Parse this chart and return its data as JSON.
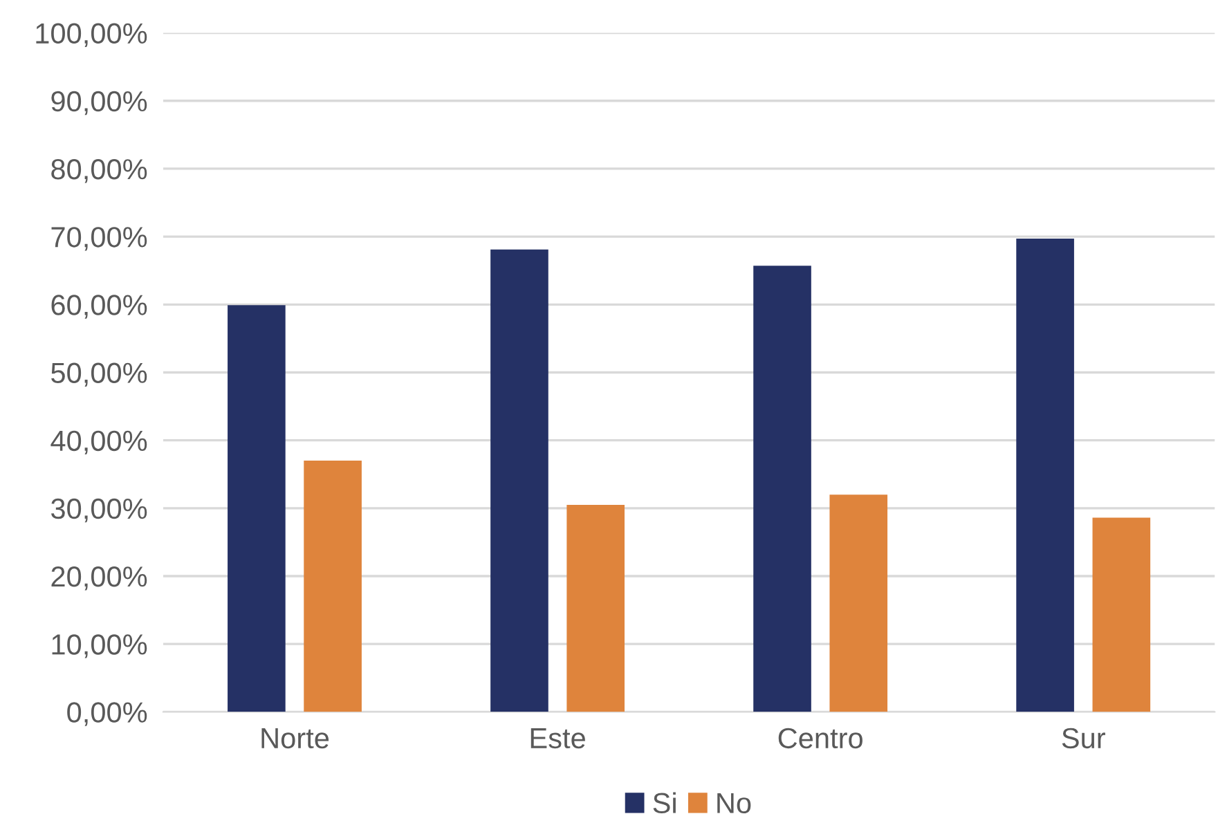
{
  "chart_data": {
    "type": "bar",
    "categories": [
      "Norte",
      "Este",
      "Centro",
      "Sur"
    ],
    "series": [
      {
        "name": "Si",
        "color": "#253165",
        "values": [
          59.9,
          68.1,
          65.7,
          69.7
        ]
      },
      {
        "name": "No",
        "color": "#df843c",
        "values": [
          37.0,
          30.5,
          32.0,
          28.6
        ]
      }
    ],
    "ylim": [
      0,
      100
    ],
    "yticks": [
      {
        "value": 0,
        "label": "0,00%"
      },
      {
        "value": 10,
        "label": "10,00%"
      },
      {
        "value": 20,
        "label": "20,00%"
      },
      {
        "value": 30,
        "label": "30,00%"
      },
      {
        "value": 40,
        "label": "40,00%"
      },
      {
        "value": 50,
        "label": "50,00%"
      },
      {
        "value": 60,
        "label": "60,00%"
      },
      {
        "value": 70,
        "label": "70,00%"
      },
      {
        "value": 80,
        "label": "80,00%"
      },
      {
        "value": 90,
        "label": "90,00%"
      },
      {
        "value": 100,
        "label": "100,00%"
      }
    ],
    "grid": "y",
    "legend": "bottom"
  }
}
